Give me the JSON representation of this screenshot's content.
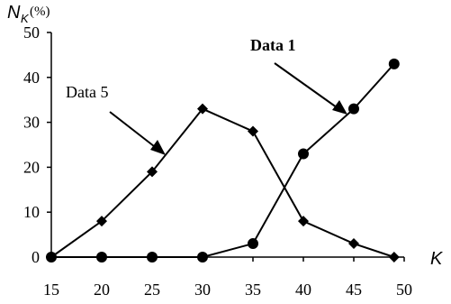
{
  "chart_data": {
    "type": "line",
    "x": [
      15,
      20,
      25,
      30,
      35,
      40,
      45,
      49
    ],
    "series": [
      {
        "name": "Data 1",
        "marker": "circle",
        "values": [
          0,
          0,
          0,
          0,
          3,
          23,
          33,
          43
        ]
      },
      {
        "name": "Data 5",
        "marker": "diamond",
        "values": [
          0,
          8,
          19,
          33,
          28,
          8,
          3,
          0
        ]
      }
    ],
    "xlabel": {
      "main": "K"
    },
    "ylabel": {
      "main": "N",
      "sub": "K",
      "unit": "(%)"
    },
    "xlim": [
      15,
      50
    ],
    "ylim": [
      0,
      50
    ],
    "xticks": [
      "15",
      "20",
      "25",
      "30",
      "35",
      "40",
      "45",
      "50"
    ],
    "yticks": [
      "0",
      "10",
      "20",
      "30",
      "40",
      "50"
    ],
    "grid": false,
    "legend": "none",
    "annotations": [
      {
        "text": "Data 1",
        "series": "Data 1"
      },
      {
        "text": "Data 5",
        "series": "Data 5"
      }
    ],
    "colors": {
      "line": "#000000",
      "marker": "#000000",
      "axis": "#000000"
    }
  }
}
